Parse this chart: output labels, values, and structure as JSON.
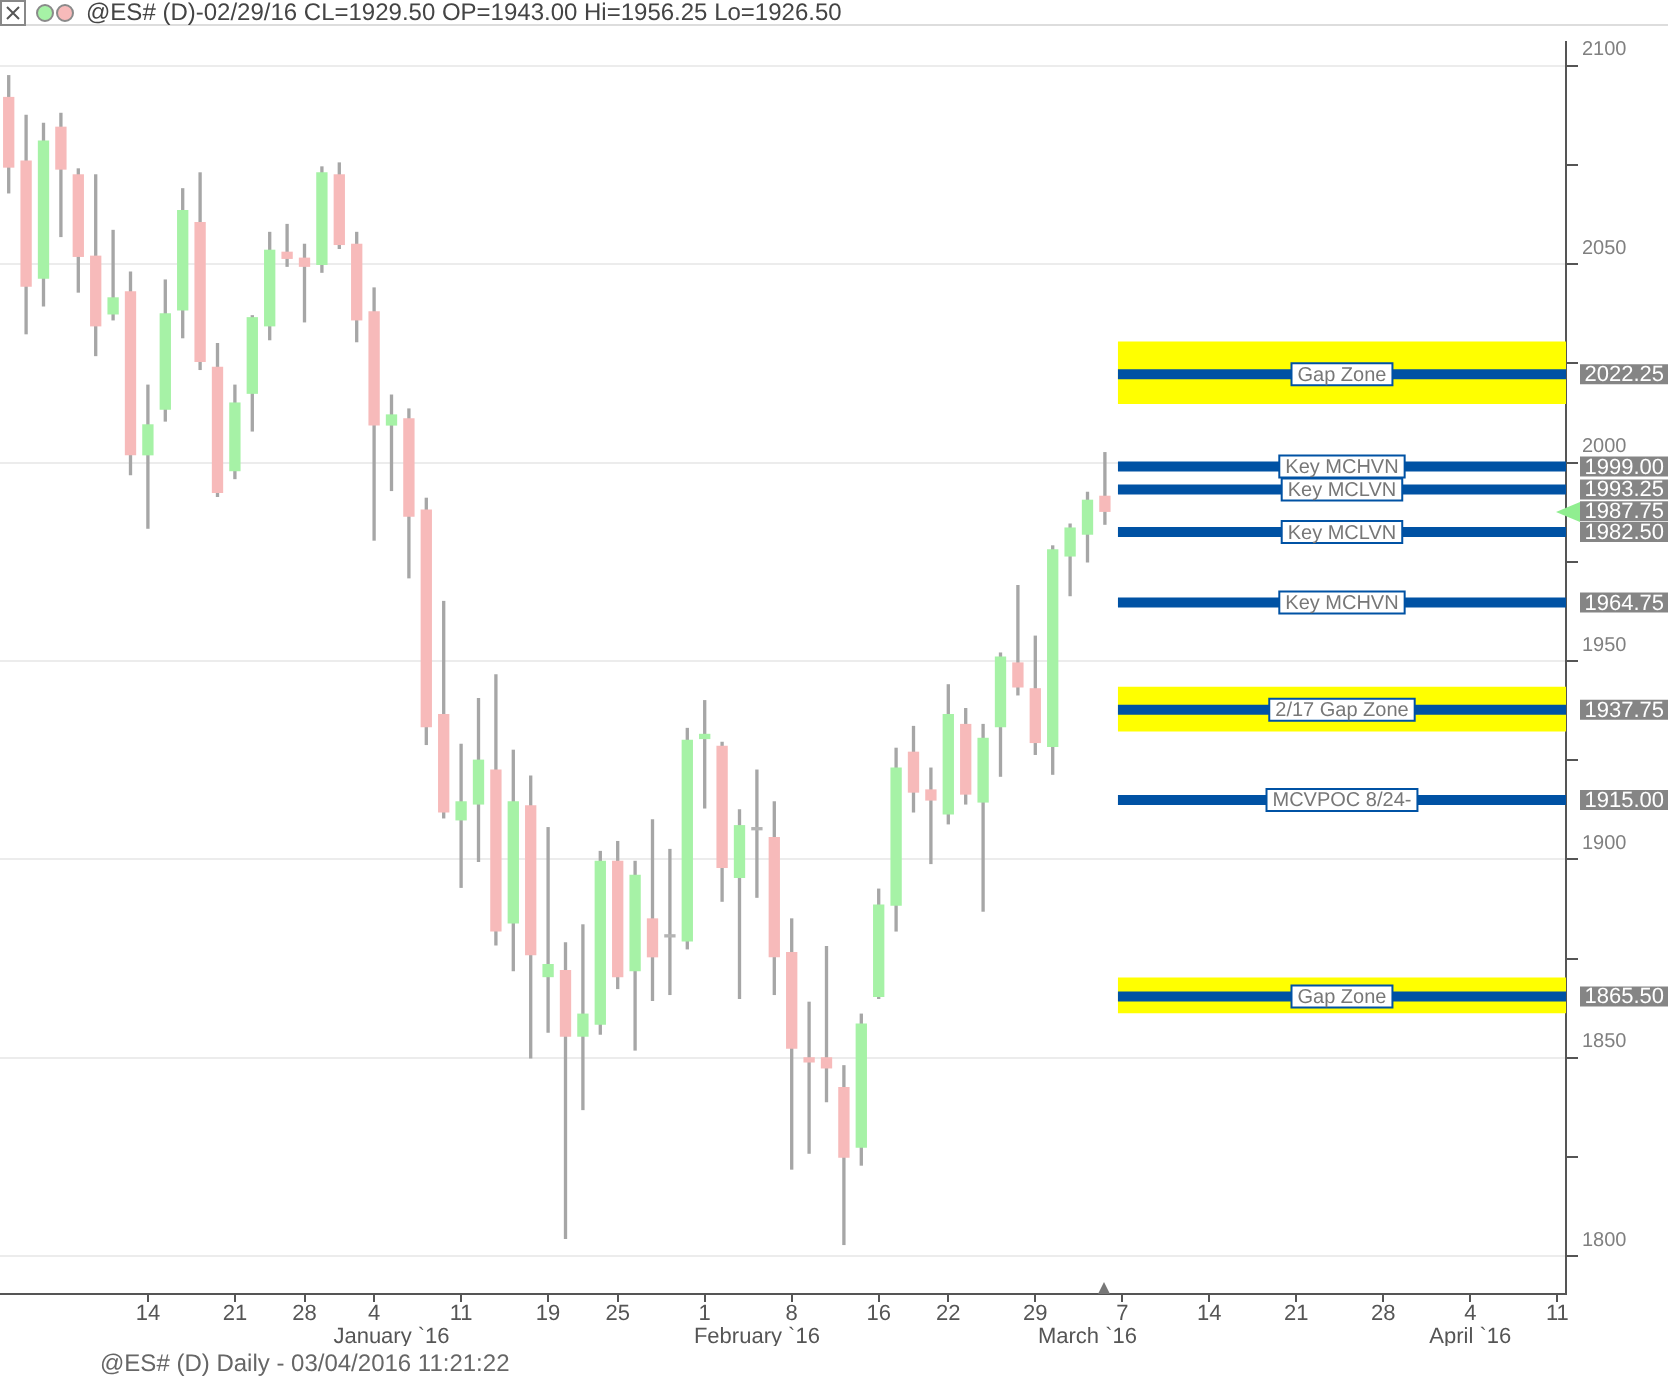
{
  "chart_data": {
    "type": "candlestick",
    "title": "@ES# (D)-02/29/16 CL=1929.50 OP=1943.00 Hi=1956.25 Lo=1926.50",
    "categories": [
      null,
      null,
      null,
      null,
      null,
      null,
      null,
      null,
      "14",
      null,
      null,
      null,
      null,
      "21",
      null,
      null,
      null,
      "28",
      null,
      null,
      null,
      "4",
      "\nJanuary `16",
      null,
      null,
      null,
      "11",
      null,
      null,
      null,
      null,
      "19",
      null,
      null,
      null,
      "25",
      null,
      null,
      null,
      null,
      "1",
      null,
      null,
      "\nFebruary `16",
      null,
      "8",
      null,
      null,
      null,
      null,
      "16",
      null,
      null,
      null,
      "22",
      null,
      null,
      null,
      null,
      "29",
      null,
      null,
      "\nMarch `16",
      null,
      "7",
      null,
      null,
      null,
      null,
      "14",
      null,
      null,
      null,
      null,
      "21",
      null,
      null,
      null,
      null,
      "28",
      null,
      null,
      null,
      null,
      "4\nApril `16",
      null,
      null,
      null,
      null,
      "11"
    ],
    "ohlc": [
      [
        2092,
        2097.5,
        2068,
        2074.5
      ],
      [
        2076,
        2087.5,
        2032.5,
        2044.5
      ],
      [
        2046.5,
        2085.5,
        2039.5,
        2081
      ],
      [
        2084.5,
        2088,
        2057,
        2074
      ],
      [
        2072.5,
        2074,
        2043,
        2052
      ],
      [
        2052,
        2072.5,
        2027,
        2034.5
      ],
      [
        2037.5,
        2058.5,
        2036,
        2041.5
      ],
      [
        2043,
        2048,
        1997,
        2002
      ],
      [
        2002,
        2019.5,
        1983.5,
        2009.5
      ],
      [
        2013.5,
        2046,
        2010.5,
        2037.5
      ],
      [
        2038.5,
        2069,
        2031.5,
        2063.5
      ],
      [
        2060.5,
        2073,
        2023.5,
        2025.5
      ],
      [
        2024,
        2030,
        1991.5,
        1992.5
      ],
      [
        1998,
        2019.5,
        1996,
        2015
      ],
      [
        2017.5,
        2037,
        2008,
        2036.5
      ],
      [
        2034.5,
        2058,
        2031,
        2053.5
      ],
      [
        2053,
        2060,
        2049.5,
        2051.5
      ],
      [
        2051.5,
        2055,
        2035.5,
        2049.5
      ],
      [
        2050,
        2074.5,
        2048,
        2073
      ],
      [
        2072.5,
        2075.5,
        2054,
        2055
      ],
      [
        2055,
        2058,
        2030.5,
        2036
      ],
      [
        2038,
        2044,
        1980.5,
        2009.5
      ],
      [
        2009.5,
        2017,
        1993,
        2012
      ],
      [
        2011,
        2013.5,
        1971,
        1986.5
      ],
      [
        1988,
        1991,
        1929,
        1933.5
      ],
      [
        1936.5,
        1965,
        1910.5,
        1912
      ],
      [
        1910,
        1929,
        1893,
        1914.5
      ],
      [
        1914,
        1940.5,
        1899.5,
        1925
      ],
      [
        1922.5,
        1946.5,
        1878.5,
        1882
      ],
      [
        1884,
        1927.5,
        1872,
        1914.5
      ],
      [
        1913.5,
        1921,
        1850,
        1876
      ],
      [
        1870.5,
        1908,
        1856.5,
        1873.5
      ],
      [
        1872,
        1879,
        1804.5,
        1855.5
      ],
      [
        1855.5,
        1883.5,
        1837,
        1861
      ],
      [
        1858.5,
        1902,
        1856,
        1899.5
      ],
      [
        1899.5,
        1904.5,
        1867.5,
        1870.5
      ],
      [
        1872,
        1899.5,
        1852,
        1896
      ],
      [
        1885,
        1910,
        1864.5,
        1875.5
      ],
      [
        1880.5,
        1902.5,
        1866,
        1880.5
      ],
      [
        1879.5,
        1933,
        1877.5,
        1930
      ],
      [
        1930.5,
        1940,
        1913,
        1931.5
      ],
      [
        1928.5,
        1929.5,
        1889.5,
        1898
      ],
      [
        1895.5,
        1912.5,
        1865,
        1908.5
      ],
      [
        1907.5,
        1922.5,
        1890.5,
        1907.5
      ],
      [
        1905.5,
        1914.5,
        1866,
        1875.5
      ],
      [
        1876.5,
        1885,
        1822,
        1852.5
      ],
      [
        1850,
        1864,
        1826,
        1849
      ],
      [
        1850,
        1878,
        1839,
        1847.5
      ],
      [
        1842.5,
        1848,
        1803,
        1825
      ],
      [
        1827.5,
        1861,
        1823,
        1858.5
      ],
      [
        1865.5,
        1892.5,
        1865,
        1888.5
      ],
      [
        1888.5,
        1928,
        1882,
        1923
      ],
      [
        1927,
        1933.5,
        1912,
        1917
      ],
      [
        1917.5,
        1923,
        1899,
        1915
      ],
      [
        1911.5,
        1944,
        1909,
        1936.5
      ],
      [
        1934,
        1938,
        1914,
        1916.5
      ],
      [
        1914.5,
        1934,
        1887,
        1930.5
      ],
      [
        1933.5,
        1952,
        1921,
        1951
      ],
      [
        1949.5,
        1969,
        1941.5,
        1943.5
      ],
      [
        1943,
        1956.25,
        1926.5,
        1929.5
      ],
      [
        1928.5,
        1979,
        1921.5,
        1978
      ],
      [
        1976.5,
        1984.5,
        1966.5,
        1983.5
      ],
      [
        1982,
        1992.5,
        1975,
        1990.5
      ],
      [
        1991.5,
        2002.5,
        1984.5,
        1987.75
      ],
      null,
      null,
      null,
      null,
      null,
      null,
      null,
      null,
      null,
      null,
      null,
      null,
      null,
      null,
      null,
      null,
      null,
      null,
      null,
      null,
      null,
      null,
      null,
      null,
      null,
      null
    ],
    "value_labels": [
      null,
      null,
      null,
      null,
      null,
      null,
      null,
      null,
      null,
      null,
      null,
      null,
      null,
      null,
      null,
      null,
      null,
      null,
      null,
      null,
      null,
      null,
      null,
      null,
      null,
      null,
      null,
      null,
      null,
      null,
      null,
      null,
      null,
      null,
      null,
      null,
      null,
      null,
      null,
      null,
      null,
      null,
      null,
      null,
      null,
      null,
      null,
      null,
      null,
      null,
      null,
      null,
      null,
      null,
      null,
      null,
      null,
      null,
      null,
      null,
      null,
      null,
      null,
      "1987.75",
      null,
      null,
      null,
      null,
      null,
      null,
      null,
      null,
      null,
      null,
      null,
      null,
      null,
      null,
      null,
      null,
      null,
      null,
      null,
      null,
      null,
      null,
      null,
      null,
      null,
      null
    ],
    "colors": [
      "#f7baba",
      "#f7baba",
      "#a6f2a6",
      "#f7baba",
      "#f7baba",
      "#f7baba",
      "#a6f2a6",
      "#f7baba",
      "#a6f2a6",
      "#a6f2a6",
      "#a6f2a6",
      "#f7baba",
      "#f7baba",
      "#a6f2a6",
      "#a6f2a6",
      "#a6f2a6",
      "#f7baba",
      "#f7baba",
      "#a6f2a6",
      "#f7baba",
      "#f7baba",
      "#f7baba",
      "#a6f2a6",
      "#f7baba",
      "#f7baba",
      "#f7baba",
      "#a6f2a6",
      "#a6f2a6",
      "#f7baba",
      "#a6f2a6",
      "#f7baba",
      "#a6f2a6",
      "#f7baba",
      "#a6f2a6",
      "#a6f2a6",
      "#f7baba",
      "#a6f2a6",
      "#f7baba",
      "#b4b4b4",
      "#a6f2a6",
      "#a6f2a6",
      "#f7baba",
      "#a6f2a6",
      "#b4b4b4",
      "#f7baba",
      "#f7baba",
      "#f7baba",
      "#f7baba",
      "#f7baba",
      "#a6f2a6",
      "#a6f2a6",
      "#a6f2a6",
      "#f7baba",
      "#f7baba",
      "#a6f2a6",
      "#f7baba",
      "#a6f2a6",
      "#a6f2a6",
      "#f7baba",
      "#f7baba",
      "#a6f2a6",
      "#a6f2a6",
      "#a6f2a6",
      "#f7baba",
      null,
      null,
      null,
      null,
      null,
      null,
      null,
      null,
      null,
      null,
      null,
      null,
      null,
      null,
      null,
      null,
      null,
      null,
      null,
      null,
      null,
      null,
      null,
      null,
      null,
      null
    ],
    "ylim": [
      1790.5,
      2106
    ],
    "yticks": [
      1800,
      {
        "value": 1825,
        "label": null
      },
      1850,
      {
        "value": 1875,
        "label": null
      },
      1900,
      {
        "value": 1925,
        "label": null
      },
      1950,
      {
        "value": 1975,
        "label": null
      },
      2000,
      {
        "value": 2025,
        "label": null
      },
      2050,
      {
        "value": 2075,
        "label": null
      },
      2100
    ],
    "grid": "y",
    "bands": [
      {
        "axis": "y",
        "from": 2014.75,
        "to": 2030.5,
        "color": "#ffff00"
      },
      {
        "axis": "y",
        "from": 1932.25,
        "to": 1943.5,
        "color": "#ffff00"
      },
      {
        "axis": "y",
        "from": 1861.25,
        "to": 1870.25,
        "color": "#ffff00"
      }
    ],
    "ref_lines": [
      {
        "axis": "y",
        "value": 2022.25,
        "label": "Gap Zone",
        "color": "#0052a4"
      },
      {
        "axis": "y",
        "value": 1999.0,
        "label": "Key MCHVN",
        "color": "#0052a4"
      },
      {
        "axis": "y",
        "value": 1993.25,
        "label": "Key MCLVN",
        "color": "#0052a4"
      },
      {
        "axis": "y",
        "value": 1982.5,
        "label": "Key MCLVN",
        "color": "#0052a4"
      },
      {
        "axis": "y",
        "value": 1964.75,
        "label": "Key MCHVN",
        "color": "#0052a4"
      },
      {
        "axis": "y",
        "value": 1937.75,
        "label": "2/17 Gap Zone",
        "color": "#0052a4"
      },
      {
        "axis": "y",
        "value": 1915.0,
        "label": "MCVPOC 8/24-",
        "color": "#0052a4"
      },
      {
        "axis": "y",
        "value": 1865.5,
        "label": "Gap Zone",
        "color": "#0052a4"
      }
    ],
    "annotations": [
      "2022.25",
      "1999.00",
      "1993.25",
      "1982.50",
      "1964.75",
      "1937.75",
      "1915.00",
      "1865.50",
      "@ES# (D) Daily - 03/04/2016 11:21:22"
    ]
  }
}
